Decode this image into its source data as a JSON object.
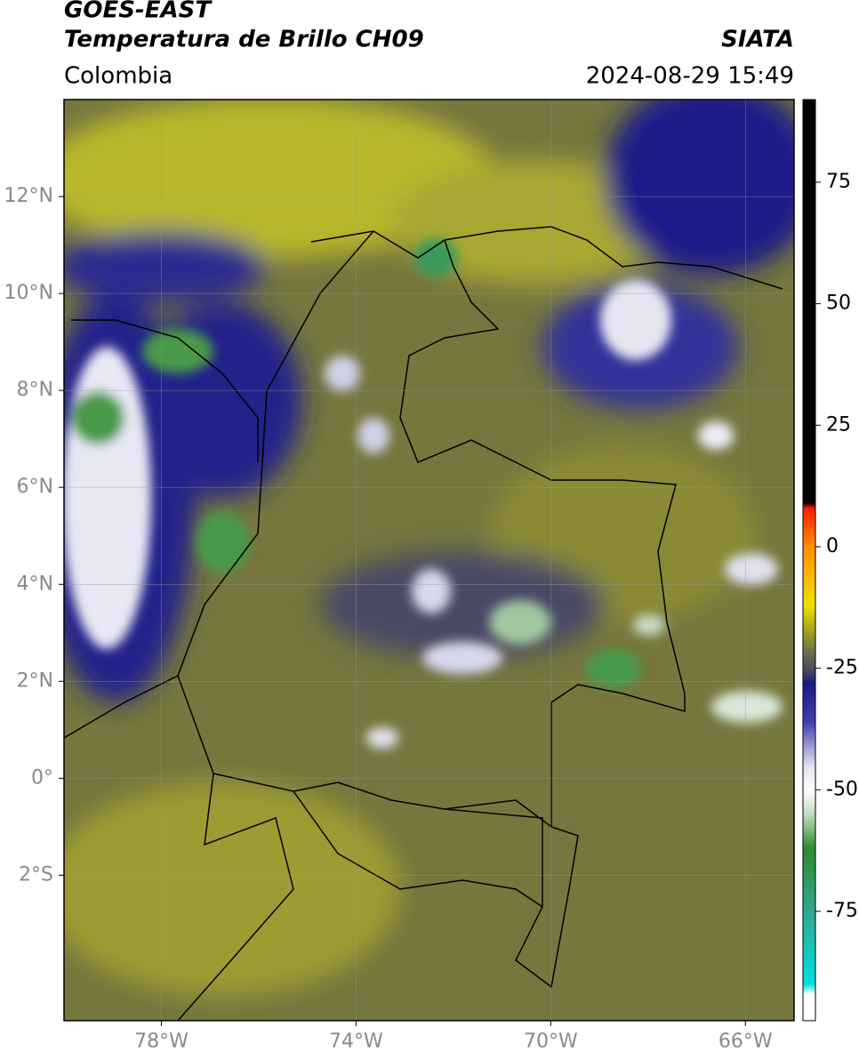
{
  "header": {
    "title": "GOES-EAST",
    "subtitle": "Temperatura de Brillo CH09",
    "source": "SIATA",
    "region": "Colombia",
    "timestamp": "2024-08-29 15:49"
  },
  "map": {
    "xlim": [
      -80,
      -65
    ],
    "ylim": [
      -5,
      14
    ],
    "xticks": [
      {
        "value": -78,
        "label": "78°W"
      },
      {
        "value": -74,
        "label": "74°W"
      },
      {
        "value": -70,
        "label": "70°W"
      },
      {
        "value": -66,
        "label": "66°W"
      }
    ],
    "yticks": [
      {
        "value": 12,
        "label": "12°N"
      },
      {
        "value": 10,
        "label": "10°N"
      },
      {
        "value": 8,
        "label": "8°N"
      },
      {
        "value": 6,
        "label": "6°N"
      },
      {
        "value": 4,
        "label": "4°N"
      },
      {
        "value": 2,
        "label": "2°N"
      },
      {
        "value": 0,
        "label": "0°"
      },
      {
        "value": -2,
        "label": "2°S"
      }
    ],
    "grid": true
  },
  "colorbar": {
    "lim": [
      -97.5,
      92
    ],
    "ticks": [
      75,
      50,
      25,
      0,
      -25,
      -50,
      -75
    ],
    "stops": [
      {
        "value": 92,
        "color": "#000000"
      },
      {
        "value": 9,
        "color": "#000000"
      },
      {
        "value": 8,
        "color": "#ff1a00"
      },
      {
        "value": 0,
        "color": "#ff9000"
      },
      {
        "value": -12,
        "color": "#f0e000"
      },
      {
        "value": -18,
        "color": "#9a9a20"
      },
      {
        "value": -22,
        "color": "#6b6b50"
      },
      {
        "value": -26,
        "color": "#404060"
      },
      {
        "value": -28,
        "color": "#1a1a80"
      },
      {
        "value": -36,
        "color": "#4040b0"
      },
      {
        "value": -45,
        "color": "#e0e0f0"
      },
      {
        "value": -50,
        "color": "#ffffff"
      },
      {
        "value": -55,
        "color": "#c0dcc0"
      },
      {
        "value": -62,
        "color": "#2e8b2e"
      },
      {
        "value": -75,
        "color": "#30a890"
      },
      {
        "value": -90,
        "color": "#00e0e0"
      },
      {
        "value": -92,
        "color": "#ffffff"
      },
      {
        "value": -97.5,
        "color": "#ffffff"
      }
    ]
  }
}
